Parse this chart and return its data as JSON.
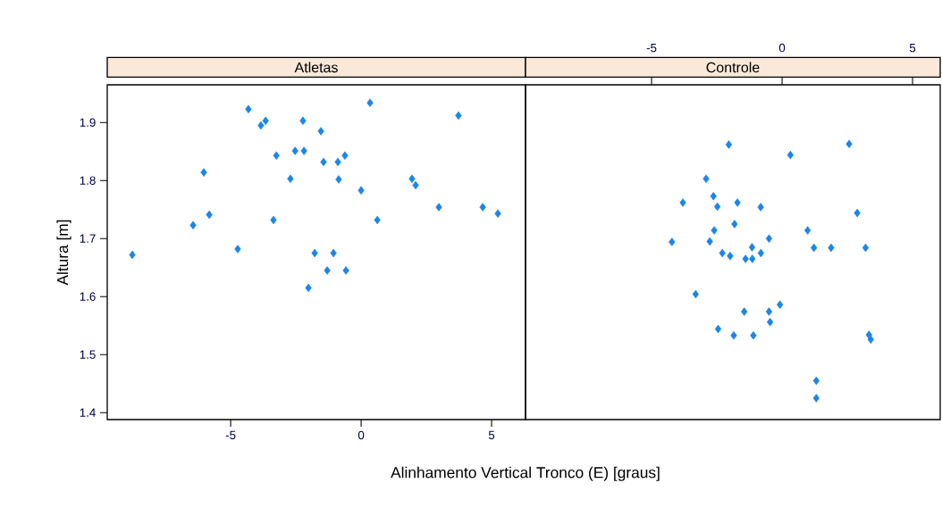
{
  "chart_data": [
    {
      "type": "scatter",
      "title": "Atletas",
      "xlabel": "Alinhamento Vertical Tronco (E) [graus]",
      "ylabel": "Altura [m]",
      "color": "#1a86e8",
      "marker": "diamond",
      "xlim": [
        -9.73,
        6.3
      ],
      "ylim": [
        1.388,
        1.965
      ],
      "xticks": [
        -5,
        0,
        5
      ],
      "yticks": [
        1.4,
        1.5,
        1.6,
        1.7,
        1.8,
        1.9
      ],
      "x": [
        -8.77,
        -6.44,
        -6.03,
        -5.82,
        -4.73,
        -4.32,
        -3.84,
        -3.66,
        -3.25,
        -3.36,
        -2.71,
        -2.53,
        -2.19,
        -2.23,
        -2.02,
        -1.78,
        -1.54,
        -1.44,
        -1.3,
        -1.06,
        -0.89,
        -0.86,
        -0.62,
        -0.58,
        0.0,
        0.34,
        0.62,
        1.95,
        2.09,
        2.98,
        3.73,
        4.66,
        5.24
      ],
      "values": [
        1.672,
        1.723,
        1.814,
        1.741,
        1.682,
        1.923,
        1.895,
        1.903,
        1.843,
        1.732,
        1.803,
        1.851,
        1.851,
        1.903,
        1.615,
        1.675,
        1.885,
        1.832,
        1.645,
        1.675,
        1.832,
        1.802,
        1.843,
        1.645,
        1.783,
        1.934,
        1.732,
        1.803,
        1.792,
        1.754,
        1.912,
        1.754,
        1.743
      ]
    },
    {
      "type": "scatter",
      "title": "Controle",
      "color": "#1a86e8",
      "marker": "diamond",
      "tick_labels": "x",
      "xlim": [
        -9.83,
        6.06
      ],
      "ylim": [
        1.388,
        1.965
      ],
      "xticks": [
        -5,
        0,
        5
      ],
      "x": [
        -2.04,
        0.32,
        -2.91,
        -3.8,
        -2.63,
        -2.48,
        -1.71,
        -0.82,
        -1.82,
        -2.6,
        -4.22,
        -2.77,
        -0.5,
        -2.29,
        -1.99,
        -1.15,
        -0.81,
        -1.4,
        -1.14,
        -3.31,
        2.57,
        2.88,
        0.98,
        1.22,
        1.88,
        3.2,
        -0.08,
        -0.5,
        -0.46,
        3.33,
        3.4,
        1.31,
        1.31,
        -1.45,
        -2.45,
        -1.85,
        -1.1
      ],
      "values": [
        1.862,
        1.844,
        1.803,
        1.762,
        1.773,
        1.755,
        1.762,
        1.754,
        1.725,
        1.714,
        1.694,
        1.695,
        1.7,
        1.675,
        1.67,
        1.685,
        1.675,
        1.665,
        1.665,
        1.604,
        1.863,
        1.744,
        1.714,
        1.684,
        1.684,
        1.684,
        1.586,
        1.574,
        1.556,
        1.534,
        1.526,
        1.455,
        1.425,
        1.574,
        1.544,
        1.533,
        1.533
      ]
    }
  ]
}
